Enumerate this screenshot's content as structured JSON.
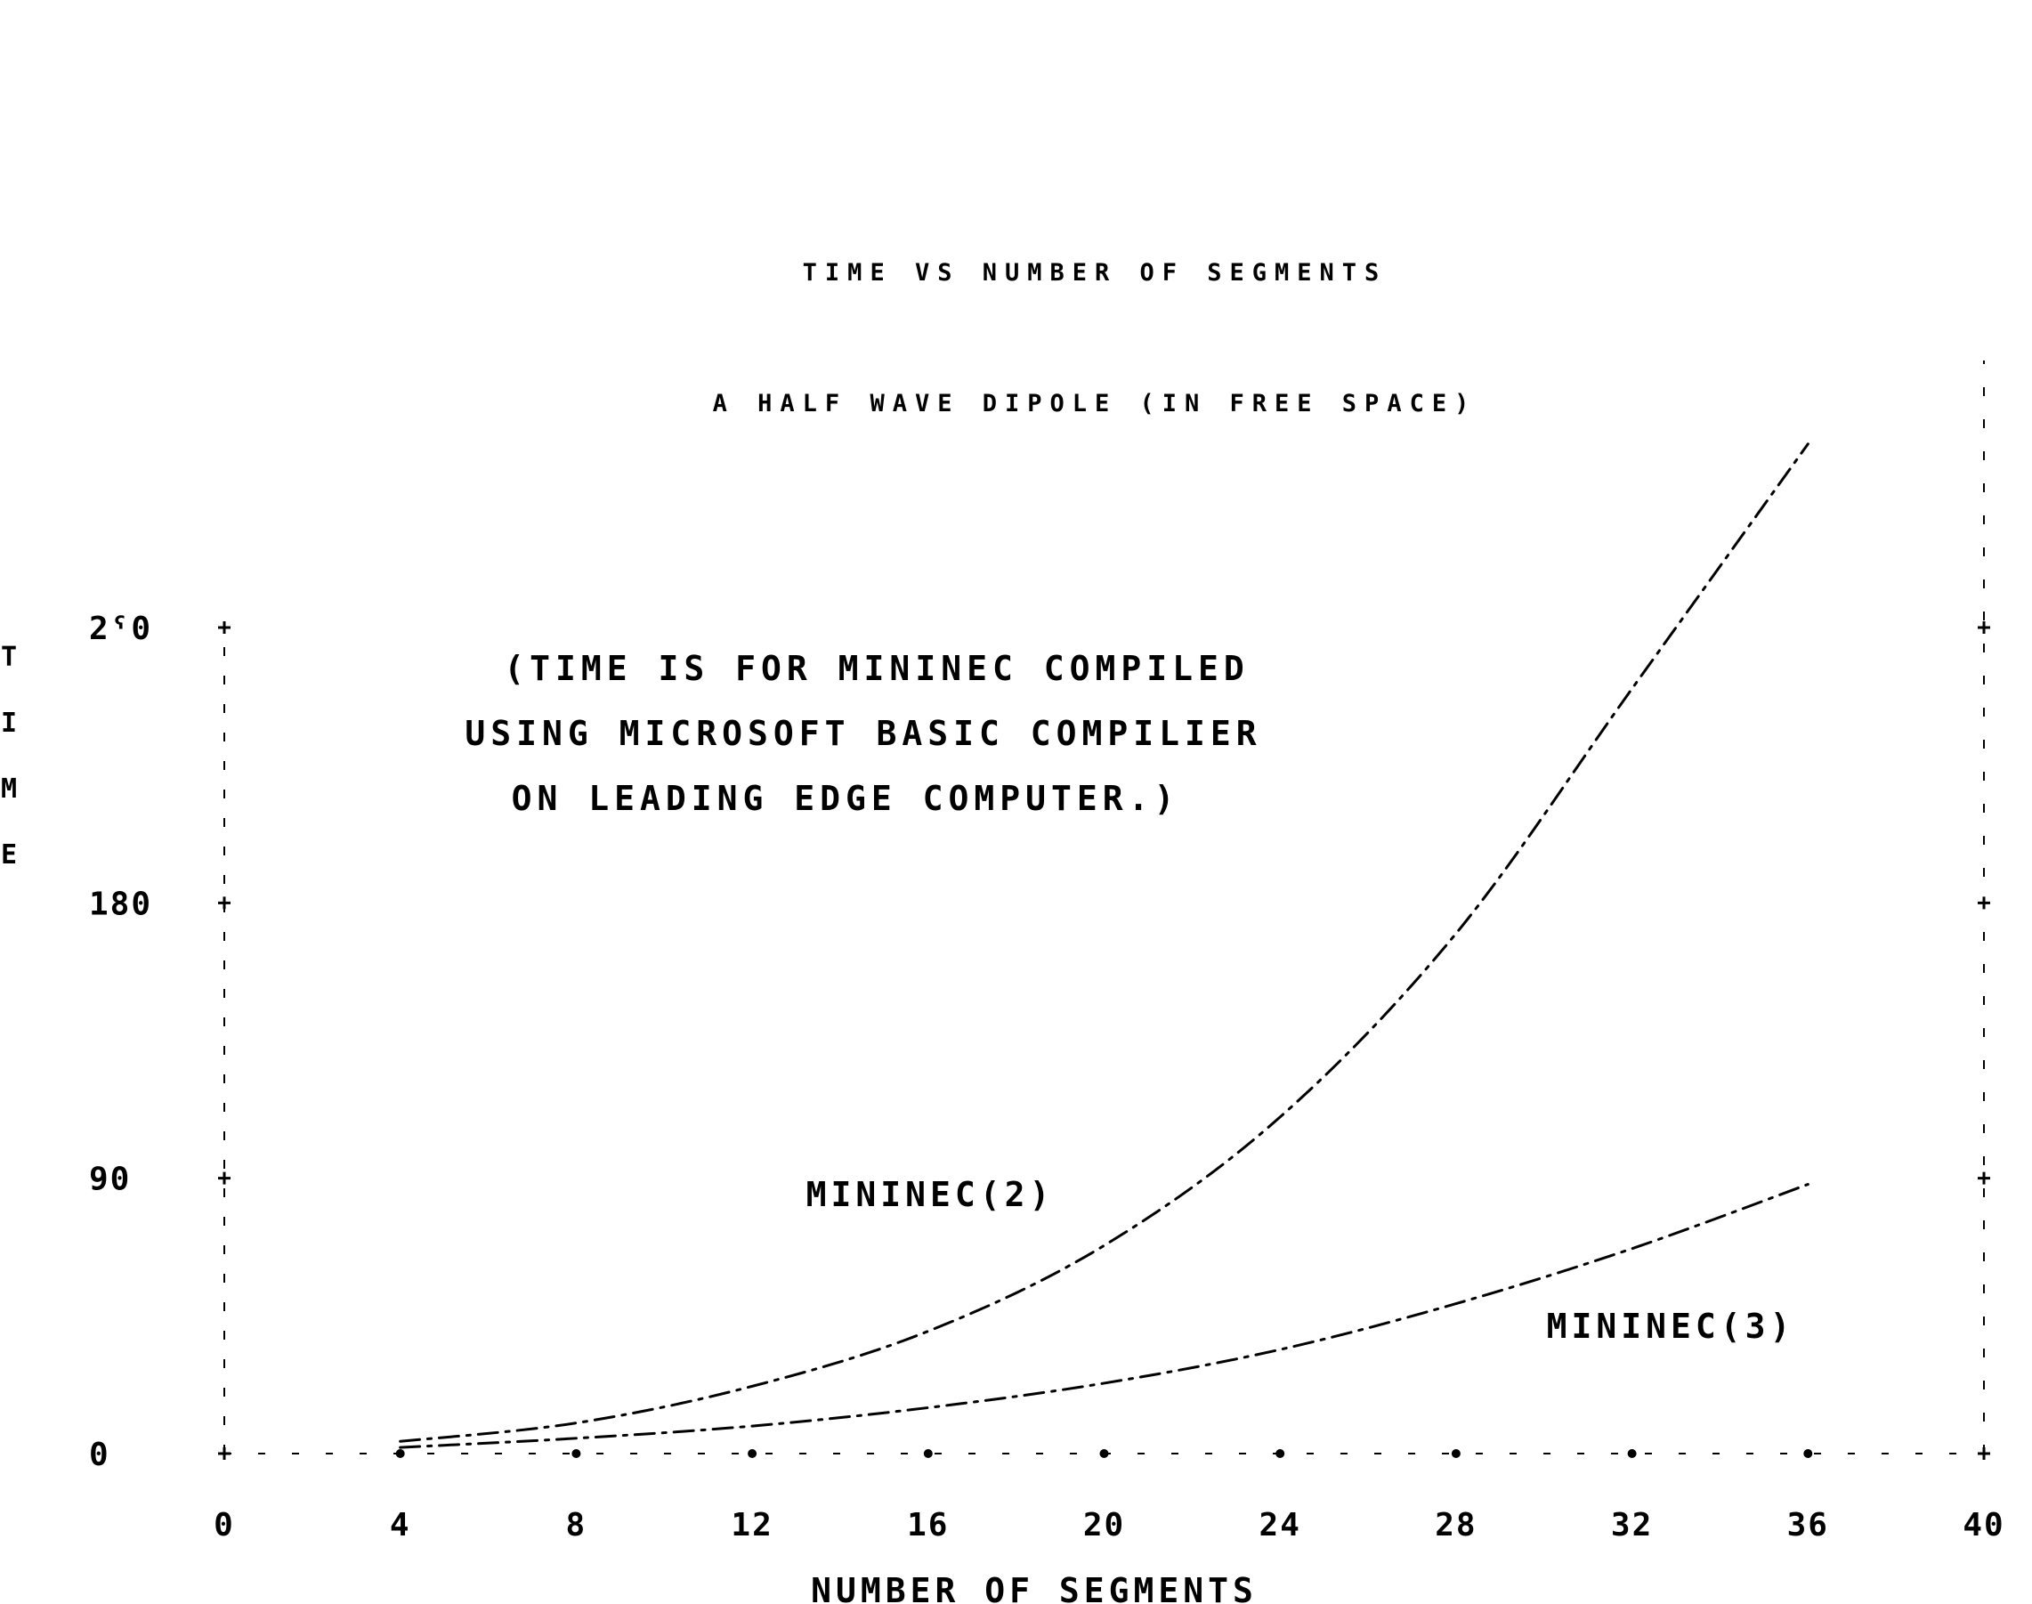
{
  "chart_data": {
    "type": "line",
    "title": "TIME VS NUMBER OF SEGMENTS",
    "subtitle": "A HALF WAVE DIPOLE (IN FREE SPACE)",
    "xlabel": "NUMBER OF SEGMENTS",
    "ylabel": "TIME",
    "xlim": [
      0,
      40
    ],
    "ylim": [
      0,
      270
    ],
    "x_ticks": [
      0,
      4,
      8,
      12,
      16,
      20,
      24,
      28,
      32,
      36,
      40
    ],
    "x_tick_labels": [
      "0",
      "4",
      "8",
      "12",
      "16",
      "20",
      "24",
      "28",
      "32",
      "36",
      "40"
    ],
    "y_ticks": [
      0,
      90,
      180,
      270
    ],
    "y_tick_labels": [
      "0",
      "90",
      "180",
      "270"
    ],
    "y_tick_labels_rendered": [
      "0",
      "90",
      "180",
      "2ˁ0"
    ],
    "annotation": [
      "(TIME IS FOR MININEC COMPILED",
      "USING MICROSOFT BASIC COMPILIER",
      "ON LEADING EDGE COMPUTER.)"
    ],
    "series": [
      {
        "name": "MININEC(2)",
        "style": "dash-dot",
        "x": [
          4,
          8,
          12,
          16,
          20,
          24,
          28,
          32,
          36
        ],
        "y": [
          4,
          10,
          22,
          40,
          68,
          110,
          170,
          250,
          330
        ]
      },
      {
        "name": "MININEC(3)",
        "style": "dash-dot",
        "x": [
          4,
          8,
          12,
          16,
          20,
          24,
          28,
          32,
          36
        ],
        "y": [
          2,
          5,
          9,
          15,
          23,
          34,
          49,
          67,
          88
        ]
      }
    ],
    "grid": false,
    "legend": "inline labels"
  }
}
